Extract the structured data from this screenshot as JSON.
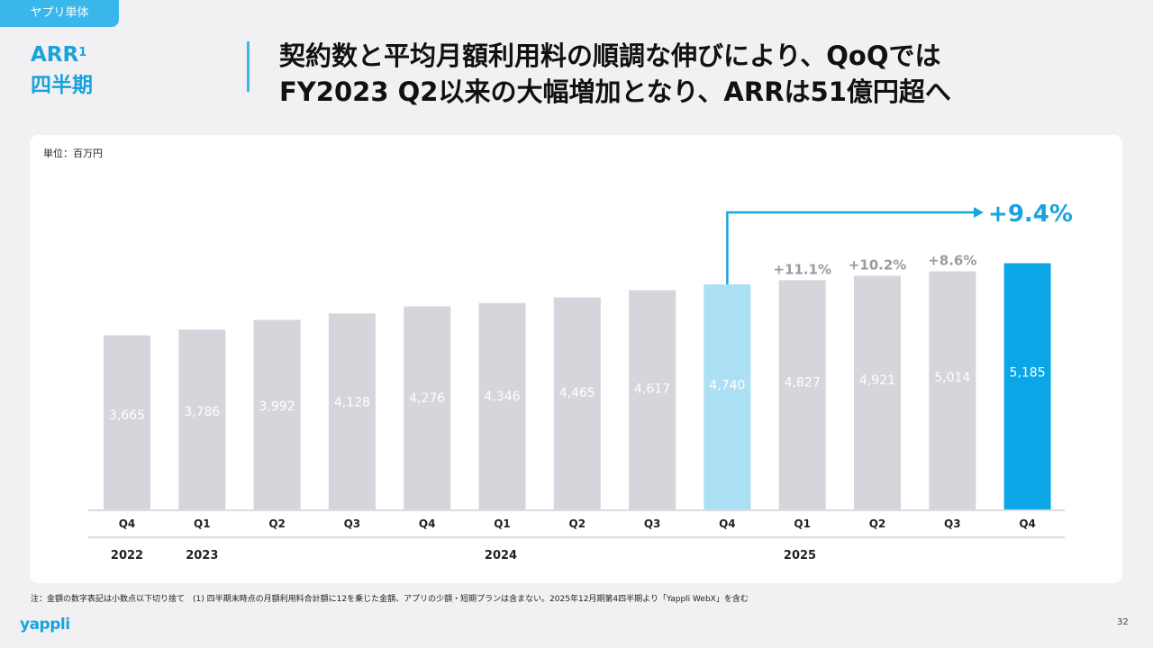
{
  "tag": "ヤプリ単体",
  "section_title": {
    "main": "ARR",
    "sup": "1",
    "sub": "四半期"
  },
  "headline": {
    "line1": "契約数と平均月額利用料の順調な伸びにより、QoQでは",
    "line2": "FY2023 Q2以来の大幅増加となり、ARRは51億円超へ"
  },
  "unit_label": "単位：百万円",
  "footnote": "注：金額の数字表記は小数点以下切り捨て　(1) 四半期末時点の月額利用料合計額に12を乗じた金額、アプリの少額・短期プランは含まない。2025年12月期第4四半期より「Yappli WebX」を含む",
  "logo": "yappli",
  "page_number": "32",
  "colors": {
    "default_bar": "#d5d5db",
    "highlight_prev": "#ace0f4",
    "highlight_current": "#0aa6e6",
    "accent": "#1aa3dd",
    "growth_label": "#9a9aa2"
  },
  "chart_data": {
    "type": "bar",
    "title": "",
    "categories": [
      "Q4",
      "Q1",
      "Q2",
      "Q3",
      "Q4",
      "Q1",
      "Q2",
      "Q3",
      "Q4",
      "Q1",
      "Q2",
      "Q3",
      "Q4"
    ],
    "values": [
      3665,
      3786,
      3992,
      4128,
      4276,
      4346,
      4465,
      4617,
      4740,
      4827,
      4921,
      5014,
      5185
    ],
    "value_labels": [
      "3,665",
      "3,786",
      "3,992",
      "4,128",
      "4,276",
      "4,346",
      "4,465",
      "4,617",
      "4,740",
      "4,827",
      "4,921",
      "5,014",
      "5,185"
    ],
    "years": [
      {
        "label": "2022",
        "index": 0
      },
      {
        "label": "2023",
        "index": 1
      },
      {
        "label": "2024",
        "index": 5
      },
      {
        "label": "2025",
        "index": 9
      }
    ],
    "growth_annotations": [
      {
        "index": 9,
        "label": "+11.1%"
      },
      {
        "index": 10,
        "label": "+10.2%"
      },
      {
        "index": 11,
        "label": "+8.6%"
      }
    ],
    "highlight_growth": {
      "from_index": 8,
      "to_index": 12,
      "label": "+9.4%"
    },
    "bar_styles": {
      "8": "highlight_prev",
      "12": "highlight_current"
    },
    "ylim": [
      0,
      5600
    ],
    "xlabel": "",
    "ylabel": "",
    "grid": false,
    "legend": "none"
  }
}
